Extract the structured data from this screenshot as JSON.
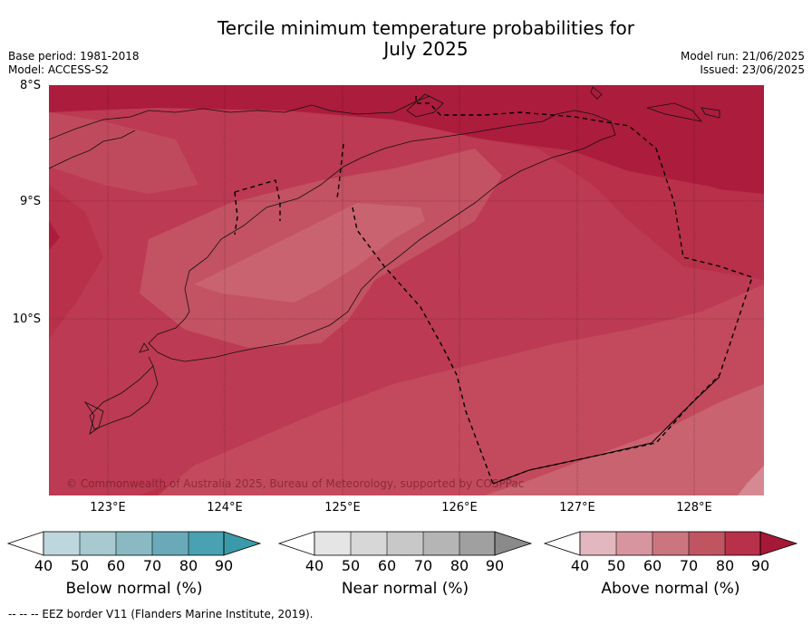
{
  "title_line1": "Tercile minimum temperature probabilities for",
  "title_line2": "July 2025",
  "base_period": "Base period: 1981-2018",
  "model": "Model: ACCESS-S2",
  "model_run": "Model run: 21/06/2025",
  "issued": "Issued: 23/06/2025",
  "lat_labels": [
    "8°S",
    "9°S",
    "10°S"
  ],
  "lon_labels": [
    "123°E",
    "124°E",
    "125°E",
    "126°E",
    "127°E",
    "128°E"
  ],
  "copyright": "© Commonwealth of Australia 2025, Bureau of Meteorology, supported by COSPPac",
  "colorbars": [
    {
      "label": "Below normal (%)",
      "ticks": [
        "40",
        "50",
        "60",
        "70",
        "80",
        "90"
      ],
      "colors": [
        "#ffffff",
        "#bfd6dd",
        "#a7c9cf",
        "#8ab9c3",
        "#6aaab8",
        "#4aa1b1",
        "#3a9aaa"
      ]
    },
    {
      "label": "Near normal (%)",
      "ticks": [
        "40",
        "50",
        "60",
        "70",
        "80",
        "90"
      ],
      "colors": [
        "#ffffff",
        "#e5e5e5",
        "#d7d7d7",
        "#c8c8c8",
        "#b5b5b5",
        "#a0a0a0",
        "#8a8a8a"
      ]
    },
    {
      "label": "Above normal (%)",
      "ticks": [
        "40",
        "50",
        "60",
        "70",
        "80",
        "90"
      ],
      "colors": [
        "#ffffff",
        "#e3b7bf",
        "#d7969f",
        "#cb767f",
        "#c05561",
        "#b83049",
        "#a51838"
      ]
    }
  ],
  "footer": "--  --  -- EEZ border V11 (Flanders Marine Institute, 2019)."
}
